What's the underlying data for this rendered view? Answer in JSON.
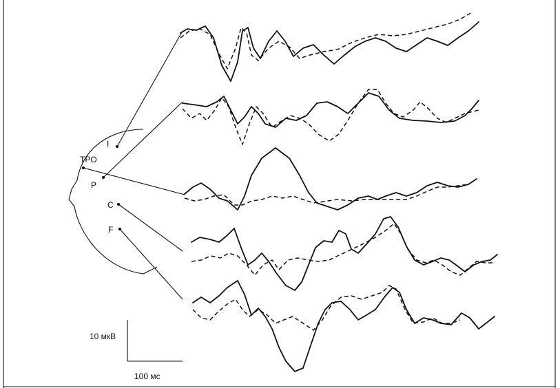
{
  "electrodes": {
    "labels": [
      "I",
      "TPO",
      "P",
      "C",
      "F"
    ]
  },
  "scale_bar": {
    "amplitude": "10 мкВ",
    "time": "100 мс"
  }
}
